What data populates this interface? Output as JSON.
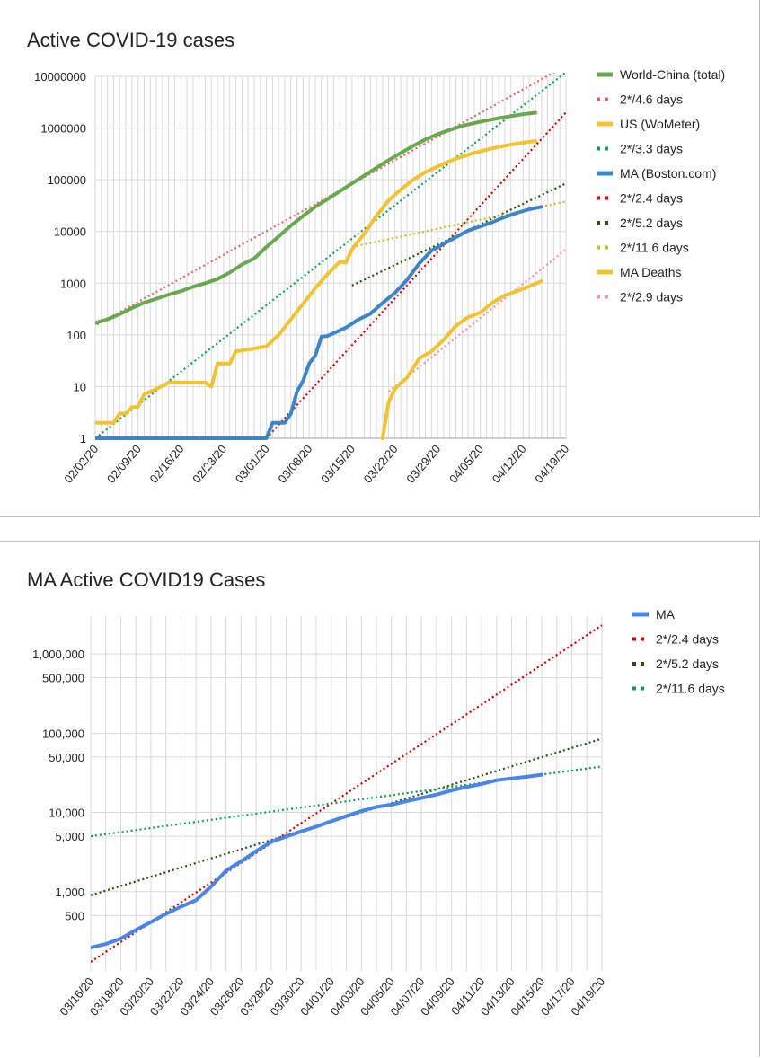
{
  "chart_data": [
    {
      "type": "line",
      "title": "Active COVID-19 cases",
      "xlabel": "",
      "ylabel": "",
      "yscale": "log",
      "ylim": [
        1,
        10000000
      ],
      "xlim": [
        "02/02/20",
        "04/19/20"
      ],
      "x_ticks": [
        "02/02/20",
        "02/09/20",
        "02/16/20",
        "02/23/20",
        "03/01/20",
        "03/08/20",
        "03/15/20",
        "03/22/20",
        "03/29/20",
        "04/05/20",
        "04/12/20",
        "04/19/20"
      ],
      "y_ticks": [
        "1",
        "10",
        "100",
        "1000",
        "10000",
        "100000",
        "1000000",
        "10000000"
      ],
      "grid": true,
      "legend_position": "right",
      "series": [
        {
          "name": "World-China (total)",
          "color": "#6aa84f",
          "style": "solid",
          "points": [
            [
              "02/02/20",
              170
            ],
            [
              "02/04/20",
              200
            ],
            [
              "02/06/20",
              250
            ],
            [
              "02/08/20",
              330
            ],
            [
              "02/10/20",
              420
            ],
            [
              "02/12/20",
              500
            ],
            [
              "02/14/20",
              600
            ],
            [
              "02/16/20",
              700
            ],
            [
              "02/18/20",
              850
            ],
            [
              "02/20/20",
              1000
            ],
            [
              "02/22/20",
              1200
            ],
            [
              "02/24/20",
              1600
            ],
            [
              "02/26/20",
              2300
            ],
            [
              "02/28/20",
              3000
            ],
            [
              "03/01/20",
              5000
            ],
            [
              "03/03/20",
              8000
            ],
            [
              "03/05/20",
              13000
            ],
            [
              "03/07/20",
              20000
            ],
            [
              "03/09/20",
              30000
            ],
            [
              "03/11/20",
              42000
            ],
            [
              "03/13/20",
              60000
            ],
            [
              "03/15/20",
              85000
            ],
            [
              "03/17/20",
              120000
            ],
            [
              "03/19/20",
              170000
            ],
            [
              "03/21/20",
              240000
            ],
            [
              "03/23/20",
              330000
            ],
            [
              "03/25/20",
              450000
            ],
            [
              "03/27/20",
              600000
            ],
            [
              "03/29/20",
              760000
            ],
            [
              "03/31/20",
              920000
            ],
            [
              "04/02/20",
              1100000
            ],
            [
              "04/04/20",
              1250000
            ],
            [
              "04/06/20",
              1400000
            ],
            [
              "04/08/20",
              1550000
            ],
            [
              "04/10/20",
              1700000
            ],
            [
              "04/12/20",
              1850000
            ],
            [
              "04/14/20",
              1980000
            ]
          ]
        },
        {
          "name": "2*/4.6 days",
          "color": "#e06666",
          "style": "dotted",
          "points": [
            [
              "02/01/20",
              130
            ],
            [
              "04/19/20",
              16000000
            ]
          ]
        },
        {
          "name": "US (WoMeter)",
          "color": "#f1c232",
          "style": "solid",
          "points": [
            [
              "02/02/20",
              2
            ],
            [
              "02/05/20",
              2
            ],
            [
              "02/06/20",
              3
            ],
            [
              "02/07/20",
              3
            ],
            [
              "02/08/20",
              4
            ],
            [
              "02/09/20",
              4
            ],
            [
              "02/10/20",
              7
            ],
            [
              "02/12/20",
              9
            ],
            [
              "02/14/20",
              12
            ],
            [
              "02/20/20",
              12
            ],
            [
              "02/21/20",
              10
            ],
            [
              "02/22/20",
              28
            ],
            [
              "02/24/20",
              28
            ],
            [
              "02/25/20",
              48
            ],
            [
              "02/27/20",
              52
            ],
            [
              "03/01/20",
              60
            ],
            [
              "03/03/20",
              100
            ],
            [
              "03/05/20",
              200
            ],
            [
              "03/07/20",
              400
            ],
            [
              "03/09/20",
              800
            ],
            [
              "03/11/20",
              1500
            ],
            [
              "03/13/20",
              2600
            ],
            [
              "03/14/20",
              2500
            ],
            [
              "03/15/20",
              4500
            ],
            [
              "03/17/20",
              9000
            ],
            [
              "03/19/20",
              20000
            ],
            [
              "03/21/20",
              40000
            ],
            [
              "03/23/20",
              65000
            ],
            [
              "03/25/20",
              100000
            ],
            [
              "03/27/20",
              140000
            ],
            [
              "03/29/20",
              180000
            ],
            [
              "03/31/20",
              230000
            ],
            [
              "04/02/20",
              280000
            ],
            [
              "04/04/20",
              330000
            ],
            [
              "04/06/20",
              380000
            ],
            [
              "04/08/20",
              430000
            ],
            [
              "04/10/20",
              480000
            ],
            [
              "04/12/20",
              520000
            ],
            [
              "04/14/20",
              560000
            ]
          ]
        },
        {
          "name": "2*/3.3 days",
          "color": "#0f9d58",
          "style": "dotted",
          "points": [
            [
              "02/02/20",
              1
            ],
            [
              "04/19/20",
              12000000
            ]
          ]
        },
        {
          "name": "MA (Boston.com)",
          "color": "#3d85c6",
          "style": "solid",
          "points": [
            [
              "02/02/20",
              1
            ],
            [
              "03/01/20",
              1
            ],
            [
              "03/02/20",
              2
            ],
            [
              "03/04/20",
              2
            ],
            [
              "03/05/20",
              3
            ],
            [
              "03/06/20",
              8
            ],
            [
              "03/07/20",
              13
            ],
            [
              "03/08/20",
              28
            ],
            [
              "03/09/20",
              40
            ],
            [
              "03/10/20",
              92
            ],
            [
              "03/11/20",
              95
            ],
            [
              "03/12/20",
              108
            ],
            [
              "03/14/20",
              138
            ],
            [
              "03/16/20",
              197
            ],
            [
              "03/18/20",
              256
            ],
            [
              "03/20/20",
              413
            ],
            [
              "03/22/20",
              646
            ],
            [
              "03/24/20",
              1159
            ],
            [
              "03/26/20",
              2417
            ],
            [
              "03/28/20",
              4257
            ],
            [
              "03/30/20",
              5752
            ],
            [
              "04/01/20",
              7738
            ],
            [
              "04/03/20",
              10402
            ],
            [
              "04/05/20",
              12500
            ],
            [
              "04/07/20",
              15202
            ],
            [
              "04/09/20",
              18941
            ],
            [
              "04/11/20",
              22860
            ],
            [
              "04/13/20",
              26867
            ],
            [
              "04/15/20",
              29918
            ]
          ]
        },
        {
          "name": "2*/2.4 days",
          "color": "#cc0000",
          "style": "dotted",
          "points": [
            [
              "03/01/20",
              1
            ],
            [
              "04/19/20",
              2000000
            ]
          ]
        },
        {
          "name": "2*/5.2 days",
          "color": "#274e13",
          "style": "dotted",
          "points": [
            [
              "03/15/20",
              900
            ],
            [
              "04/19/20",
              85000
            ]
          ]
        },
        {
          "name": "2*/11.6 days",
          "color": "#bfbf30",
          "style": "dotted",
          "points": [
            [
              "03/15/20",
              5000
            ],
            [
              "04/19/20",
              38000
            ]
          ]
        },
        {
          "name": "MA Deaths",
          "color": "#f1c232",
          "style": "solid",
          "points": [
            [
              "03/20/20",
              1
            ],
            [
              "03/20/20",
              1
            ],
            [
              "03/21/20",
              5
            ],
            [
              "03/22/20",
              9
            ],
            [
              "03/24/20",
              15
            ],
            [
              "03/26/20",
              35
            ],
            [
              "03/28/20",
              48
            ],
            [
              "03/30/20",
              80
            ],
            [
              "04/01/20",
              150
            ],
            [
              "04/03/20",
              220
            ],
            [
              "04/05/20",
              270
            ],
            [
              "04/07/20",
              420
            ],
            [
              "04/09/20",
              580
            ],
            [
              "04/11/20",
              700
            ],
            [
              "04/13/20",
              870
            ],
            [
              "04/15/20",
              1100
            ]
          ]
        },
        {
          "name": "2*/2.9 days",
          "color": "#f48fb1",
          "style": "dotted",
          "points": [
            [
              "03/21/20",
              8
            ],
            [
              "04/19/20",
              4500
            ]
          ]
        }
      ]
    },
    {
      "type": "line",
      "title": "MA Active COVID19 Cases",
      "xlabel": "",
      "ylabel": "",
      "yscale": "log",
      "ylim": [
        100,
        3000000
      ],
      "xlim": [
        "03/16/20",
        "04/19/20"
      ],
      "x_ticks": [
        "03/16/20",
        "03/18/20",
        "03/20/20",
        "03/22/20",
        "03/24/20",
        "03/26/20",
        "03/28/20",
        "03/30/20",
        "04/01/20",
        "04/03/20",
        "04/05/20",
        "04/07/20",
        "04/09/20",
        "04/11/20",
        "04/13/20",
        "04/15/20",
        "04/17/20",
        "04/19/20"
      ],
      "y_ticks": [
        {
          "value": 500,
          "label": "500"
        },
        {
          "value": 1000,
          "label": "1,000"
        },
        {
          "value": 5000,
          "label": "5,000"
        },
        {
          "value": 10000,
          "label": "10,000"
        },
        {
          "value": 50000,
          "label": "50,000"
        },
        {
          "value": 100000,
          "label": "100,000"
        },
        {
          "value": 500000,
          "label": "500,000"
        },
        {
          "value": 1000000,
          "label": "1,000,000"
        }
      ],
      "grid": true,
      "legend_position": "right",
      "series": [
        {
          "name": "MA",
          "color": "#4a86e8",
          "style": "solid",
          "points": [
            [
              "03/16/20",
              197
            ],
            [
              "03/17/20",
              218
            ],
            [
              "03/18/20",
              256
            ],
            [
              "03/19/20",
              328
            ],
            [
              "03/20/20",
              413
            ],
            [
              "03/21/20",
              525
            ],
            [
              "03/22/20",
              646
            ],
            [
              "03/23/20",
              777
            ],
            [
              "03/24/20",
              1159
            ],
            [
              "03/25/20",
              1838
            ],
            [
              "03/26/20",
              2417
            ],
            [
              "03/27/20",
              3240
            ],
            [
              "03/28/20",
              4257
            ],
            [
              "03/29/20",
              4955
            ],
            [
              "03/30/20",
              5752
            ],
            [
              "03/31/20",
              6620
            ],
            [
              "04/01/20",
              7738
            ],
            [
              "04/02/20",
              8966
            ],
            [
              "04/03/20",
              10402
            ],
            [
              "04/04/20",
              11736
            ],
            [
              "04/05/20",
              12500
            ],
            [
              "04/06/20",
              13837
            ],
            [
              "04/07/20",
              15202
            ],
            [
              "04/08/20",
              16790
            ],
            [
              "04/09/20",
              18941
            ],
            [
              "04/10/20",
              20974
            ],
            [
              "04/11/20",
              22860
            ],
            [
              "04/12/20",
              25475
            ],
            [
              "04/13/20",
              26867
            ],
            [
              "04/14/20",
              28163
            ],
            [
              "04/15/20",
              29918
            ]
          ]
        },
        {
          "name": "2*/2.4 days",
          "color": "#cc0000",
          "style": "dotted",
          "points": [
            [
              "03/16/20",
              130
            ],
            [
              "04/19/20",
              2300000
            ]
          ]
        },
        {
          "name": "2*/5.2 days",
          "color": "#274e13",
          "style": "dotted",
          "points": [
            [
              "03/16/20",
              900
            ],
            [
              "04/19/20",
              85000
            ]
          ]
        },
        {
          "name": "2*/11.6 days",
          "color": "#0f9d58",
          "style": "dotted",
          "points": [
            [
              "03/16/20",
              5000
            ],
            [
              "04/19/20",
              38000
            ]
          ]
        }
      ]
    }
  ]
}
